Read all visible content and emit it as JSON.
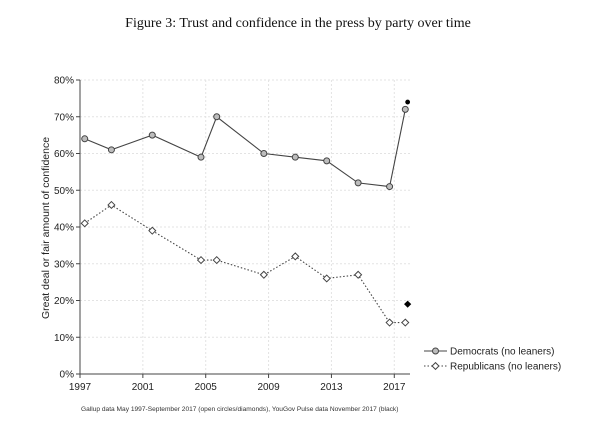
{
  "chart_data": {
    "type": "line",
    "title": "Figure 3: Trust and confidence in the press by party over time",
    "ylabel": "Great deal or fair amount of confidence",
    "xlabel": "",
    "xlim": [
      1997,
      2018
    ],
    "ylim": [
      0,
      80
    ],
    "x_ticks": [
      1997,
      2001,
      2005,
      2009,
      2013,
      2017
    ],
    "y_ticks": [
      "0%",
      "10%",
      "20%",
      "30%",
      "40%",
      "50%",
      "60%",
      "70%",
      "80%"
    ],
    "grid": true,
    "legend_position": "bottom-right",
    "note": "Gallup data May 1997-September 2017 (open circles/diamonds), YouGov Pulse data November 2017 (black)",
    "series": [
      {
        "name": "Democrats (no leaners)",
        "marker": "circle",
        "line_style": "solid",
        "color": "#444444",
        "x": [
          1997.3,
          1999.0,
          2001.6,
          2004.7,
          2005.7,
          2008.7,
          2010.7,
          2012.7,
          2014.7,
          2016.7,
          2017.7
        ],
        "values": [
          64,
          61,
          65,
          59,
          70,
          60,
          59,
          58,
          52,
          51,
          72
        ]
      },
      {
        "name": "Republicans (no leaners)",
        "marker": "diamond",
        "line_style": "dotted",
        "color": "#444444",
        "x": [
          1997.3,
          1999.0,
          2001.6,
          2004.7,
          2005.7,
          2008.7,
          2010.7,
          2012.7,
          2014.7,
          2016.7,
          2017.7
        ],
        "values": [
          41,
          46,
          39,
          31,
          31,
          27,
          32,
          26,
          27,
          14,
          14
        ]
      }
    ],
    "extra_points": [
      {
        "label": "Democrats YouGov Nov 2017",
        "marker": "circle-filled",
        "x": 2017.85,
        "value": 74
      },
      {
        "label": "Republicans YouGov Nov 2017",
        "marker": "diamond-filled",
        "x": 2017.85,
        "value": 19
      }
    ],
    "colors": {
      "line": "#444444",
      "marker_fill_open": "#bdbdbd",
      "marker_fill_solid": "#000000"
    }
  }
}
